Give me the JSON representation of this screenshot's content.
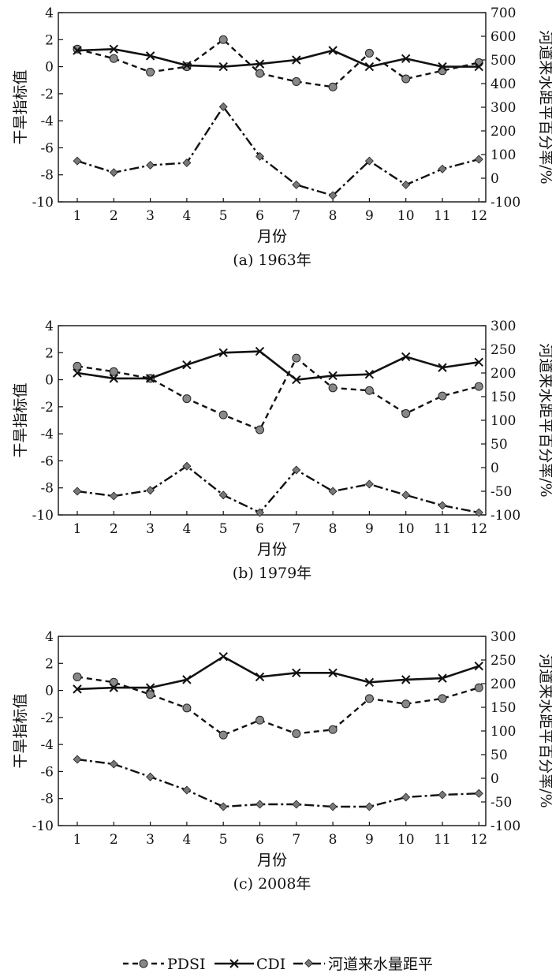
{
  "legend": {
    "pdsi": "PDSI",
    "cdi": "CDI",
    "flow": "河道来水量距平"
  },
  "chart_data": [
    {
      "type": "line",
      "caption": "(a) 1963年",
      "xlabel": "月份",
      "ylabel_left": "干旱指标值",
      "ylabel_right": "河道来水距平百分率/%",
      "categories": [
        "1",
        "2",
        "3",
        "4",
        "5",
        "6",
        "7",
        "8",
        "9",
        "10",
        "11",
        "12"
      ],
      "left_ylim": [
        -10,
        4
      ],
      "left_yticks": [
        "4",
        "2",
        "0",
        "-2",
        "-4",
        "-6",
        "-8",
        "-10"
      ],
      "right_ylim": [
        -100,
        700
      ],
      "right_yticks": [
        "700",
        "600",
        "500",
        "400",
        "300",
        "200",
        "100",
        "0",
        "-100"
      ],
      "series": [
        {
          "name": "PDSI",
          "axis": "left",
          "values": [
            1.3,
            0.6,
            -0.4,
            0.0,
            2.0,
            -0.5,
            -1.1,
            -1.5,
            1.0,
            -0.9,
            -0.3,
            0.3
          ]
        },
        {
          "name": "CDI",
          "axis": "left",
          "values": [
            1.2,
            1.3,
            0.8,
            0.1,
            0.0,
            0.2,
            0.5,
            1.2,
            0.0,
            0.6,
            0.0,
            0.0
          ]
        },
        {
          "name": "河道来水量距平",
          "axis": "right",
          "values": [
            73,
            24,
            55,
            65,
            302,
            92,
            -28,
            -73,
            73,
            -28,
            39,
            80
          ]
        }
      ]
    },
    {
      "type": "line",
      "caption": "(b) 1979年",
      "xlabel": "月份",
      "ylabel_left": "干旱指标值",
      "ylabel_right": "河道来水距平百分率/%",
      "categories": [
        "1",
        "2",
        "3",
        "4",
        "5",
        "6",
        "7",
        "8",
        "9",
        "10",
        "11",
        "12"
      ],
      "left_ylim": [
        -10,
        4
      ],
      "left_yticks": [
        "4",
        "2",
        "0",
        "-2",
        "-4",
        "-6",
        "-8",
        "-10"
      ],
      "right_ylim": [
        -100,
        300
      ],
      "right_yticks": [
        "300",
        "250",
        "200",
        "150",
        "100",
        "50",
        "0",
        "-50",
        "-100"
      ],
      "series": [
        {
          "name": "PDSI",
          "axis": "left",
          "values": [
            1.0,
            0.6,
            0.1,
            -1.4,
            -2.6,
            -3.7,
            1.6,
            -0.6,
            -0.8,
            -2.5,
            -1.2,
            -0.5
          ]
        },
        {
          "name": "CDI",
          "axis": "left",
          "values": [
            0.5,
            0.1,
            0.1,
            1.1,
            2.0,
            2.1,
            0.0,
            0.3,
            0.4,
            1.7,
            0.9,
            1.3
          ]
        },
        {
          "name": "河道来水量距平",
          "axis": "right",
          "values": [
            -50,
            -60,
            -48,
            3,
            -58,
            -95,
            -5,
            -50,
            -35,
            -58,
            -80,
            -95
          ]
        }
      ]
    },
    {
      "type": "line",
      "caption": "(c) 2008年",
      "xlabel": "月份",
      "ylabel_left": "干旱指标值",
      "ylabel_right": "河道来水距平百分率/%",
      "categories": [
        "1",
        "2",
        "3",
        "4",
        "5",
        "6",
        "7",
        "8",
        "9",
        "10",
        "11",
        "12"
      ],
      "left_ylim": [
        -10,
        4
      ],
      "left_yticks": [
        "4",
        "2",
        "0",
        "-2",
        "-4",
        "-6",
        "-8",
        "-10"
      ],
      "right_ylim": [
        -100,
        300
      ],
      "right_yticks": [
        "300",
        "250",
        "200",
        "150",
        "100",
        "50",
        "0",
        "-50",
        "-100"
      ],
      "series": [
        {
          "name": "PDSI",
          "axis": "left",
          "values": [
            1.0,
            0.6,
            -0.3,
            -1.3,
            -3.3,
            -2.2,
            -3.2,
            -2.9,
            -0.6,
            -1.0,
            -0.6,
            0.2
          ]
        },
        {
          "name": "CDI",
          "axis": "left",
          "values": [
            0.1,
            0.2,
            0.2,
            0.8,
            2.5,
            1.0,
            1.3,
            1.3,
            0.6,
            0.8,
            0.9,
            1.8
          ]
        },
        {
          "name": "河道来水量距平",
          "axis": "right",
          "values": [
            40,
            30,
            3,
            -25,
            -60,
            -55,
            -55,
            -60,
            -60,
            -40,
            -35,
            -32
          ]
        }
      ]
    }
  ]
}
